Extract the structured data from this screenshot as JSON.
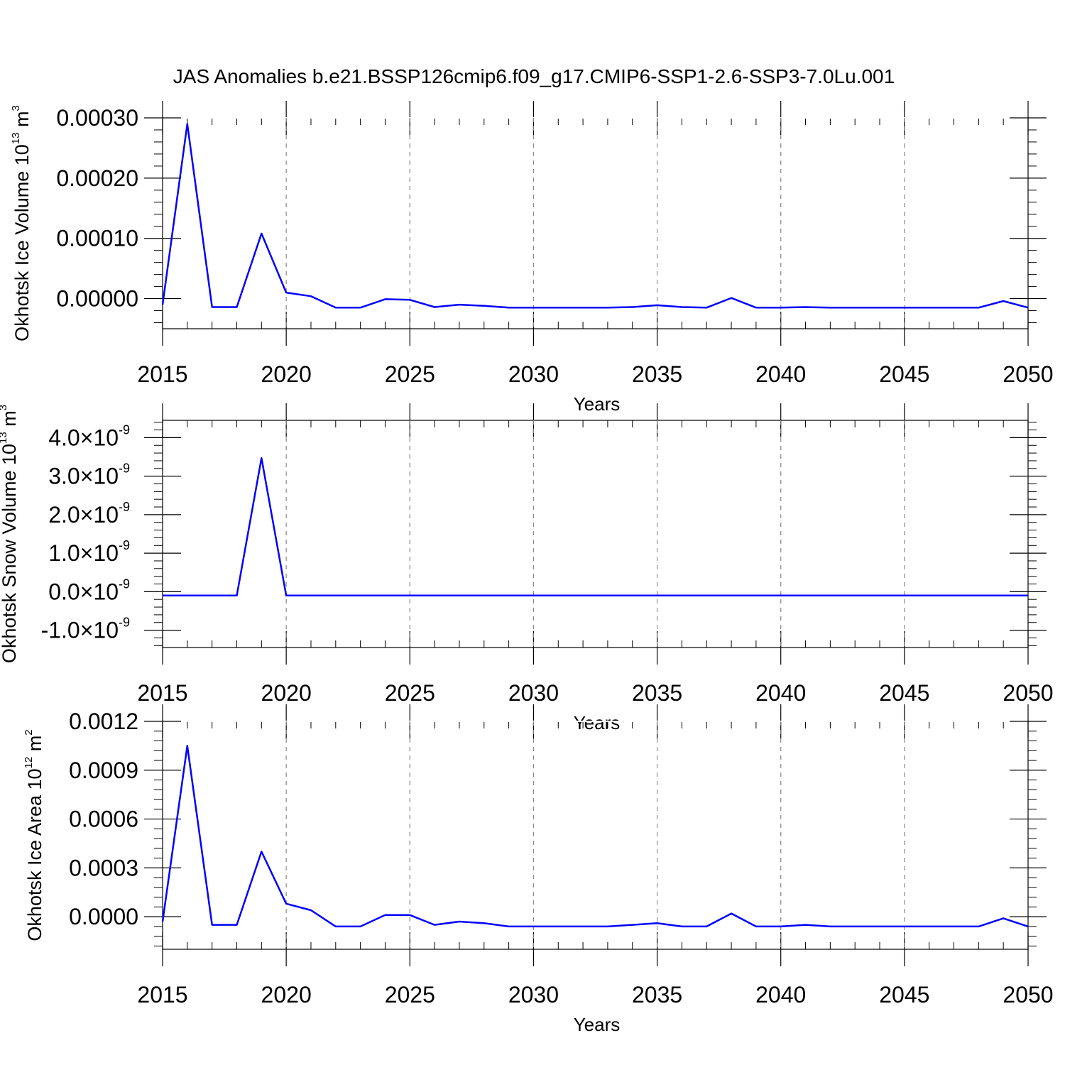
{
  "title": "JAS Anomalies b.e21.BSSP126cmip6.f09_g17.CMIP6-SSP1-2.6-SSP3-7.0Lu.001",
  "line_color": "#0000ff",
  "chart_data": [
    {
      "type": "line",
      "ylabel_text": "Okhotsk Ice Volume 10",
      "ylabel_exp": "13",
      "ylabel_unit": " m",
      "ylabel_unit_exp": "3",
      "xlabel": "Years",
      "xlim": [
        2015,
        2050
      ],
      "ylim": [
        -5e-05,
        0.0003
      ],
      "yticks": [
        0.0,
        0.0001,
        0.0002,
        0.0003
      ],
      "ytick_labels": [
        "0.00000",
        "0.00010",
        "0.00020",
        "0.00030"
      ],
      "xticks": [
        2015,
        2020,
        2025,
        2030,
        2035,
        2040,
        2045,
        2050
      ],
      "xtick_labels": [
        "2015",
        "2020",
        "2025",
        "2030",
        "2035",
        "2040",
        "2045",
        "2050"
      ],
      "series": [
        {
          "name": "Okhotsk Ice Volume",
          "x": [
            2015,
            2016,
            2017,
            2018,
            2019,
            2020,
            2021,
            2022,
            2023,
            2024,
            2025,
            2026,
            2027,
            2028,
            2029,
            2030,
            2031,
            2032,
            2033,
            2034,
            2035,
            2036,
            2037,
            2038,
            2039,
            2040,
            2041,
            2042,
            2043,
            2044,
            2045,
            2046,
            2047,
            2048,
            2049,
            2050
          ],
          "values": [
            -1e-05,
            0.00029,
            -1.4e-05,
            -1.4e-05,
            0.000108,
            1e-05,
            4e-06,
            -1.5e-05,
            -1.5e-05,
            -1e-06,
            -2e-06,
            -1.4e-05,
            -1e-05,
            -1.2e-05,
            -1.5e-05,
            -1.5e-05,
            -1.5e-05,
            -1.5e-05,
            -1.5e-05,
            -1.4e-05,
            -1.1e-05,
            -1.4e-05,
            -1.5e-05,
            1e-06,
            -1.5e-05,
            -1.5e-05,
            -1.4e-05,
            -1.5e-05,
            -1.5e-05,
            -1.5e-05,
            -1.5e-05,
            -1.5e-05,
            -1.5e-05,
            -1.5e-05,
            -4e-06,
            -1.5e-05
          ]
        }
      ]
    },
    {
      "type": "line",
      "ylabel_text": "Okhotsk Snow Volume 10",
      "ylabel_exp": "13",
      "ylabel_unit": " m",
      "ylabel_unit_exp": "3",
      "xlabel": "Years",
      "xlim": [
        2015,
        2050
      ],
      "ylim": [
        -1.45,
        4.45
      ],
      "yticks": [
        -1.0,
        0.0,
        1.0,
        2.0,
        3.0,
        4.0
      ],
      "ytick_labels": [
        "-1.0",
        "0.0",
        "1.0",
        "2.0",
        "3.0",
        "4.0"
      ],
      "ytick_suffix": "×10",
      "ytick_suffix_exp": "-9",
      "xticks": [
        2015,
        2020,
        2025,
        2030,
        2035,
        2040,
        2045,
        2050
      ],
      "xtick_labels": [
        "2015",
        "2020",
        "2025",
        "2030",
        "2035",
        "2040",
        "2045",
        "2050"
      ],
      "series": [
        {
          "name": "Okhotsk Snow Volume (×10^-9)",
          "x": [
            2015,
            2016,
            2017,
            2018,
            2019,
            2020,
            2021,
            2022,
            2023,
            2024,
            2025,
            2026,
            2027,
            2028,
            2029,
            2030,
            2031,
            2032,
            2033,
            2034,
            2035,
            2036,
            2037,
            2038,
            2039,
            2040,
            2041,
            2042,
            2043,
            2044,
            2045,
            2046,
            2047,
            2048,
            2049,
            2050
          ],
          "values": [
            -0.1,
            -0.1,
            -0.1,
            -0.1,
            3.47,
            -0.1,
            -0.1,
            -0.1,
            -0.1,
            -0.1,
            -0.1,
            -0.1,
            -0.1,
            -0.1,
            -0.1,
            -0.1,
            -0.1,
            -0.1,
            -0.1,
            -0.1,
            -0.1,
            -0.1,
            -0.1,
            -0.1,
            -0.1,
            -0.1,
            -0.1,
            -0.1,
            -0.1,
            -0.1,
            -0.1,
            -0.1,
            -0.1,
            -0.1,
            -0.1,
            -0.1
          ]
        }
      ]
    },
    {
      "type": "line",
      "ylabel_text": "Okhotsk Ice Area 10",
      "ylabel_exp": "12",
      "ylabel_unit": " m",
      "ylabel_unit_exp": "2",
      "xlabel": "Years",
      "xlim": [
        2015,
        2050
      ],
      "ylim": [
        -0.0002,
        0.0012
      ],
      "yticks": [
        0.0,
        0.0003,
        0.0006,
        0.0009,
        0.0012
      ],
      "ytick_labels": [
        "0.0000",
        "0.0003",
        "0.0006",
        "0.0009",
        "0.0012"
      ],
      "xticks": [
        2015,
        2020,
        2025,
        2030,
        2035,
        2040,
        2045,
        2050
      ],
      "xtick_labels": [
        "2015",
        "2020",
        "2025",
        "2030",
        "2035",
        "2040",
        "2045",
        "2050"
      ],
      "series": [
        {
          "name": "Okhotsk Ice Area",
          "x": [
            2015,
            2016,
            2017,
            2018,
            2019,
            2020,
            2021,
            2022,
            2023,
            2024,
            2025,
            2026,
            2027,
            2028,
            2029,
            2030,
            2031,
            2032,
            2033,
            2034,
            2035,
            2036,
            2037,
            2038,
            2039,
            2040,
            2041,
            2042,
            2043,
            2044,
            2045,
            2046,
            2047,
            2048,
            2049,
            2050
          ],
          "values": [
            -3e-05,
            0.00105,
            -5e-05,
            -5e-05,
            0.0004,
            8e-05,
            4e-05,
            -6e-05,
            -6e-05,
            1e-05,
            1e-05,
            -5e-05,
            -3e-05,
            -4e-05,
            -6e-05,
            -6e-05,
            -6e-05,
            -6e-05,
            -6e-05,
            -5e-05,
            -4e-05,
            -6e-05,
            -6e-05,
            2e-05,
            -6e-05,
            -6e-05,
            -5e-05,
            -6e-05,
            -6e-05,
            -6e-05,
            -6e-05,
            -6e-05,
            -6e-05,
            -6e-05,
            -1e-05,
            -6e-05
          ]
        }
      ]
    }
  ]
}
